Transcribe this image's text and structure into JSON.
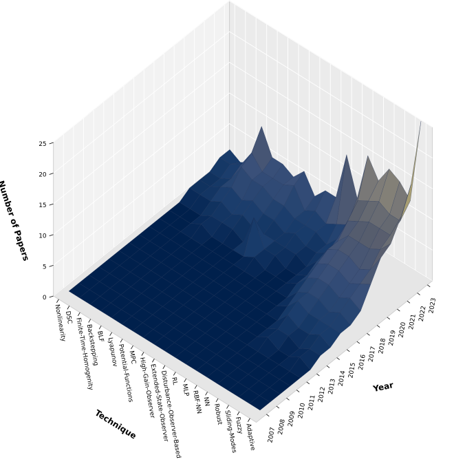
{
  "chart_data": {
    "type": "surface3d",
    "title": "",
    "xlabel": "Technique",
    "ylabel": "Year",
    "zlabel": "Number of Papers",
    "zlim": [
      0,
      25
    ],
    "z_ticks": [
      "0",
      "5",
      "10",
      "15",
      "20",
      "25"
    ],
    "techniques": [
      "Nonlinearity",
      "DSC",
      "Finite-Time-Homogenity",
      "Backstepping",
      "BLF",
      "Lyapunov",
      "Potential-Functions",
      "MPC",
      "High-Gain-Observer",
      "Extended-State-Observer",
      "Disturbance-Observer-Based",
      "RL",
      "MLP",
      "RBF-NN",
      "NN",
      "Robust",
      "Sliding-Modes",
      "Fuzzy",
      "Adaptive"
    ],
    "years": [
      "2007",
      "2008",
      "2009",
      "2010",
      "2011",
      "2012",
      "2013",
      "2014",
      "2015",
      "2016",
      "2017",
      "2018",
      "2019",
      "2020",
      "2021",
      "2022",
      "2023"
    ],
    "values": [
      [
        0,
        0,
        0,
        0,
        0,
        0,
        0,
        0,
        0,
        0,
        0,
        0,
        1,
        1,
        1,
        2,
        2
      ],
      [
        0,
        0,
        0,
        0,
        0,
        0,
        0,
        0,
        0,
        0,
        0,
        0,
        1,
        1,
        1,
        2,
        1
      ],
      [
        0,
        0,
        0,
        0,
        0,
        0,
        0,
        0,
        0,
        0,
        0,
        0,
        1,
        2,
        2,
        3,
        2
      ],
      [
        0,
        0,
        0,
        0,
        0,
        0,
        0,
        0,
        0,
        0,
        1,
        1,
        2,
        3,
        5,
        6,
        9
      ],
      [
        0,
        0,
        0,
        0,
        0,
        0,
        0,
        0,
        0,
        0,
        0,
        1,
        1,
        2,
        4,
        4,
        5
      ],
      [
        0,
        0,
        0,
        0,
        0,
        0,
        0,
        0,
        0,
        0,
        0,
        1,
        2,
        3,
        4,
        4,
        5
      ],
      [
        0,
        0,
        0,
        0,
        0,
        0,
        0,
        0,
        0,
        0,
        0,
        0,
        1,
        2,
        3,
        4,
        4
      ],
      [
        0,
        0,
        0,
        0,
        0,
        0,
        0,
        0,
        0,
        0,
        0,
        5,
        1,
        2,
        3,
        5,
        6
      ],
      [
        0,
        0,
        0,
        0,
        0,
        0,
        0,
        0,
        0,
        0,
        1,
        1,
        1,
        1,
        2,
        2,
        3
      ],
      [
        0,
        0,
        0,
        0,
        0,
        0,
        0,
        0,
        0,
        0,
        0,
        1,
        1,
        2,
        2,
        3,
        5
      ],
      [
        0,
        0,
        0,
        0,
        0,
        0,
        0,
        0,
        0,
        0,
        0,
        0,
        1,
        1,
        2,
        2,
        5
      ],
      [
        0,
        0,
        0,
        0,
        0,
        0,
        0,
        0,
        0,
        0,
        0,
        0,
        0,
        1,
        1,
        3,
        13
      ],
      [
        0,
        0,
        0,
        0,
        0,
        0,
        0,
        0,
        0,
        0,
        1,
        1,
        2,
        2,
        3,
        4,
        7
      ],
      [
        0,
        0,
        0,
        0,
        0,
        0,
        0,
        0,
        1,
        2,
        3,
        4,
        5,
        5,
        7,
        9,
        15
      ],
      [
        0,
        0,
        0,
        0,
        0,
        1,
        1,
        2,
        3,
        3,
        4,
        5,
        6,
        7,
        8,
        10,
        12
      ],
      [
        0,
        0,
        0,
        0,
        0,
        0,
        1,
        1,
        2,
        3,
        4,
        5,
        6,
        7,
        9,
        11,
        15
      ],
      [
        0,
        0,
        0,
        0,
        0,
        0,
        0,
        1,
        2,
        2,
        3,
        4,
        5,
        7,
        9,
        10,
        14
      ],
      [
        0,
        0,
        0,
        0,
        0,
        1,
        1,
        2,
        2,
        3,
        4,
        5,
        6,
        8,
        9,
        10,
        12
      ],
      [
        0,
        0,
        0,
        0,
        0,
        0,
        1,
        1,
        2,
        2,
        3,
        6,
        9,
        10,
        13,
        17,
        26
      ]
    ],
    "colormap": [
      "#00204c",
      "#193c6b",
      "#3a5079",
      "#575d6d",
      "#7c7b78",
      "#a59c74",
      "#d3c164",
      "#ffea46"
    ],
    "grid": true
  }
}
